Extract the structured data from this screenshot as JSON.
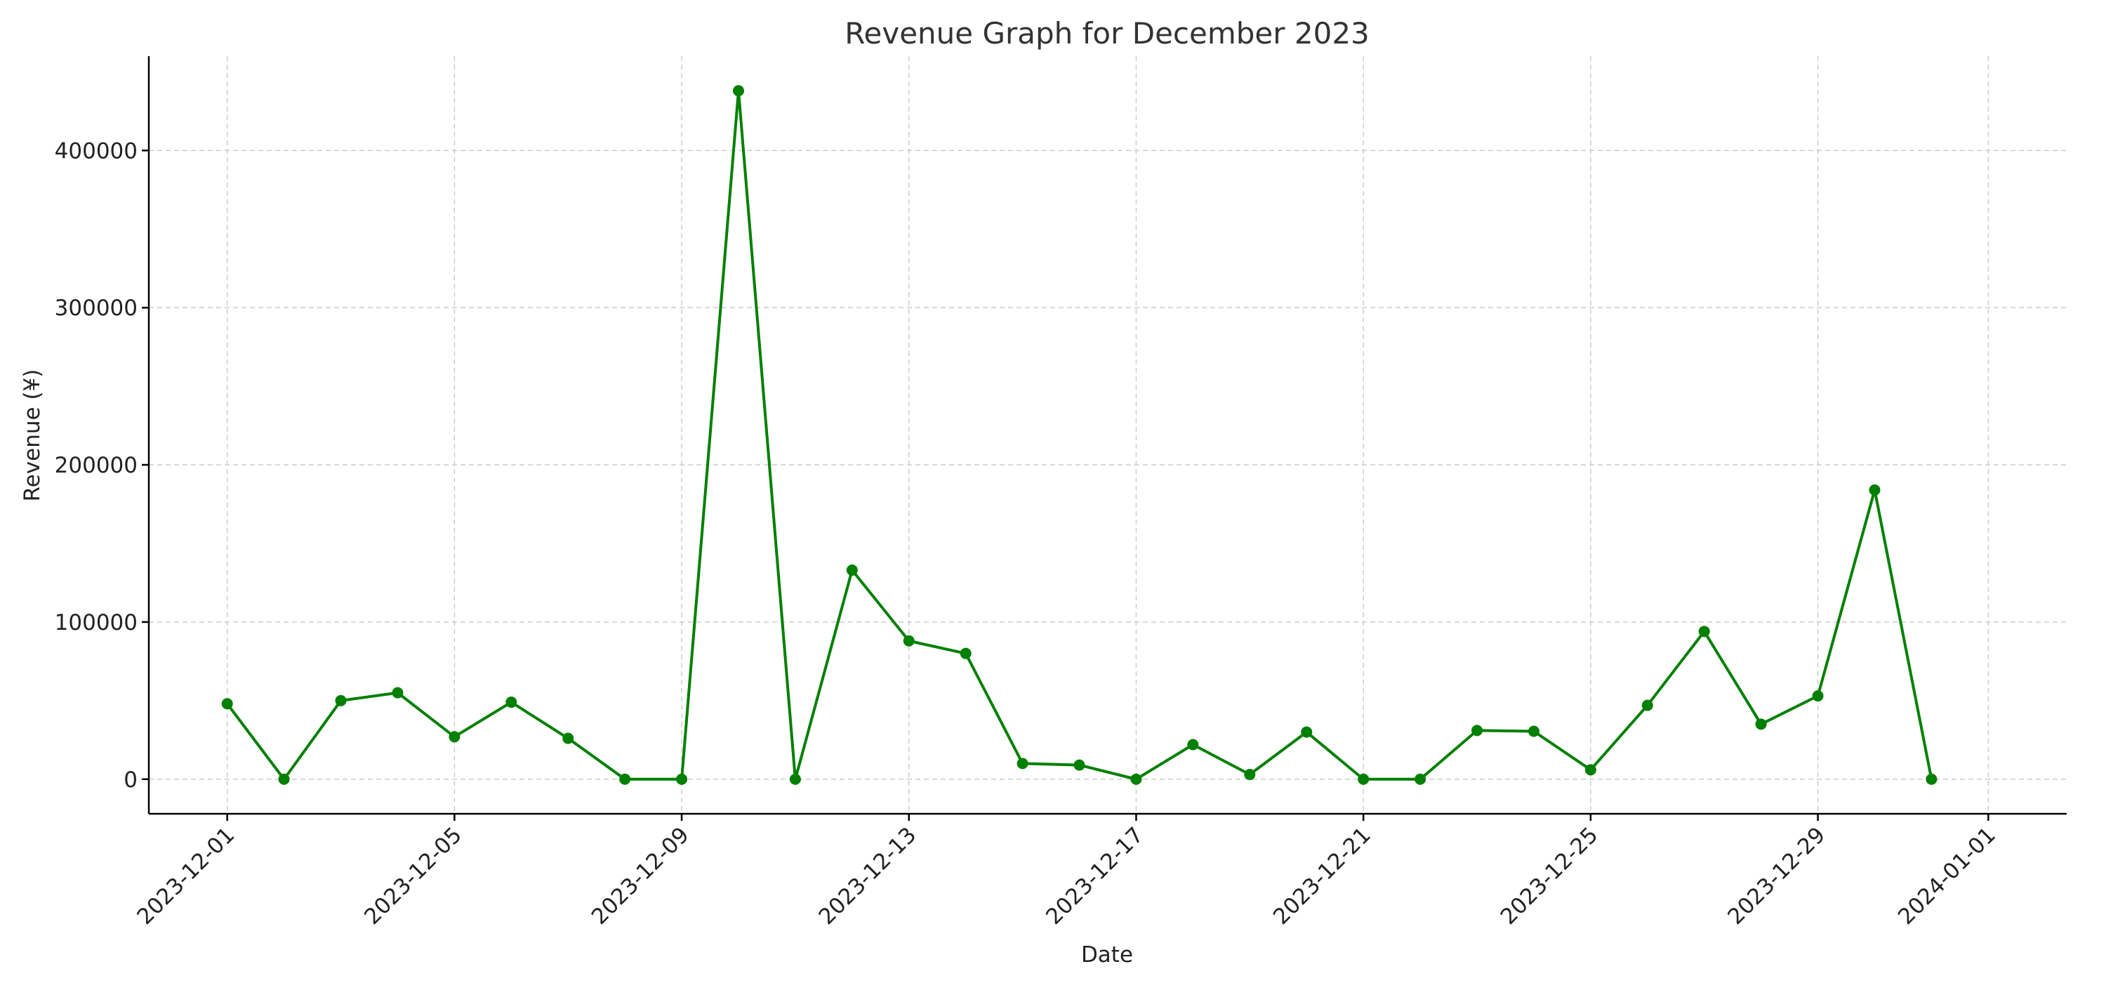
{
  "chart_data": {
    "type": "line",
    "title": "Revenue Graph for December 2023",
    "xlabel": "Date",
    "ylabel": "Revenue (¥)",
    "x": [
      "2023-12-01",
      "2023-12-02",
      "2023-12-03",
      "2023-12-04",
      "2023-12-05",
      "2023-12-06",
      "2023-12-07",
      "2023-12-08",
      "2023-12-09",
      "2023-12-10",
      "2023-12-11",
      "2023-12-12",
      "2023-12-13",
      "2023-12-14",
      "2023-12-15",
      "2023-12-16",
      "2023-12-17",
      "2023-12-18",
      "2023-12-19",
      "2023-12-20",
      "2023-12-21",
      "2023-12-22",
      "2023-12-23",
      "2023-12-24",
      "2023-12-25",
      "2023-12-26",
      "2023-12-27",
      "2023-12-28",
      "2023-12-29",
      "2023-12-30",
      "2023-12-31"
    ],
    "series": [
      {
        "values": [
          48000,
          0,
          50000,
          55000,
          27000,
          49000,
          26000,
          0,
          0,
          438000,
          0,
          133000,
          88000,
          80000,
          10000,
          9000,
          0,
          22000,
          3000,
          30000,
          0,
          0,
          31000,
          30500,
          6000,
          47000,
          94000,
          35000,
          53000,
          184000,
          0
        ],
        "color": "#008000"
      }
    ],
    "xticks": [
      "2023-12-01",
      "2023-12-05",
      "2023-12-09",
      "2023-12-13",
      "2023-12-17",
      "2023-12-21",
      "2023-12-25",
      "2023-12-29",
      "2024-01-01"
    ],
    "yticks": [
      0,
      100000,
      200000,
      300000,
      400000
    ],
    "xlim": [
      "2023-11-29",
      "2024-01-02"
    ],
    "ylim": [
      -22000,
      460000
    ],
    "grid": true,
    "legend": false
  }
}
